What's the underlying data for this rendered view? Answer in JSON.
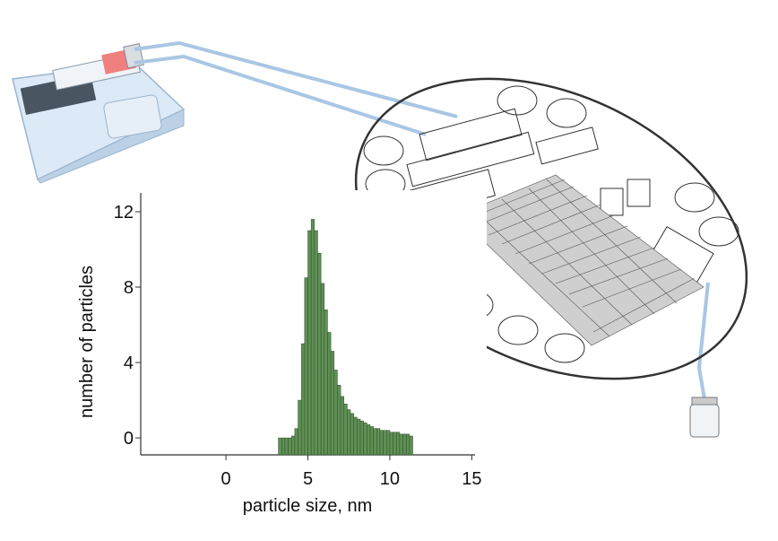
{
  "chart_data": {
    "type": "histogram",
    "xlabel": "particle size, nm",
    "ylabel": "number of particles",
    "bins": [
      3.2,
      3.4,
      3.6,
      3.8,
      4.0,
      4.2,
      4.4,
      4.6,
      4.8,
      5.0,
      5.2,
      5.4,
      5.6,
      5.8,
      6.0,
      6.2,
      6.4,
      6.6,
      6.8,
      7.0,
      7.2,
      7.4,
      7.6,
      7.8,
      8.0,
      8.2,
      8.4,
      8.6,
      8.8,
      9.0,
      9.2,
      9.4,
      9.6,
      9.8,
      10.0,
      10.2,
      10.4,
      10.6,
      10.8,
      11.0,
      11.2,
      11.4
    ],
    "values": [
      0,
      0,
      0,
      0,
      0.1,
      0.5,
      2,
      5,
      8.5,
      11,
      11.6,
      11,
      9.8,
      8.2,
      6.8,
      5.6,
      4.6,
      3.6,
      2.8,
      2.2,
      1.8,
      1.5,
      1.3,
      1.1,
      1.0,
      0.9,
      0.8,
      0.7,
      0.6,
      0.5,
      0.5,
      0.4,
      0.4,
      0.4,
      0.3,
      0.3,
      0.3,
      0.2,
      0.2,
      0.2,
      0.1
    ],
    "color": "#5f8f55",
    "xlim": [
      -5.2,
      15.2
    ],
    "ylim": [
      -0.9,
      13
    ],
    "xticks": [
      0,
      5,
      10,
      15
    ],
    "yticks": [
      0,
      4,
      8,
      12
    ]
  }
}
